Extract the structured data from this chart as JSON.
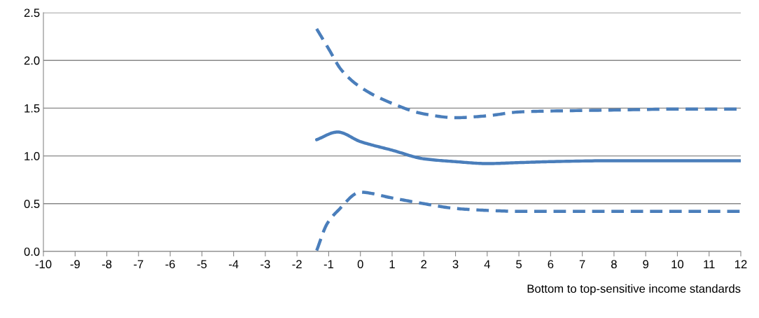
{
  "chart_data": {
    "type": "line",
    "xlabel": "Bottom to top-sensitive income standards",
    "xlim": [
      -10,
      12
    ],
    "xticks": [
      -10,
      -9,
      -8,
      -7,
      -6,
      -5,
      -4,
      -3,
      -2,
      -1,
      0,
      1,
      2,
      3,
      4,
      5,
      6,
      7,
      8,
      9,
      10,
      11,
      12
    ],
    "ylim": [
      0,
      2.5
    ],
    "yticks": [
      {
        "value": 0,
        "label": "0.0"
      },
      {
        "value": 0.5,
        "label": "0.5"
      },
      {
        "value": 1,
        "label": "1.0"
      },
      {
        "value": 1.5,
        "label": "1.5"
      },
      {
        "value": 2,
        "label": "2.0"
      },
      {
        "value": 2.5,
        "label": "2.5"
      }
    ],
    "grid": "y",
    "series": [
      {
        "color": "#4a7ebb",
        "line_style": "dashed",
        "x": [
          -1.38,
          -1.0,
          -0.6,
          0,
          1,
          2,
          3,
          4,
          5,
          6,
          8,
          10,
          12
        ],
        "values": [
          2.33,
          2.12,
          1.9,
          1.72,
          1.55,
          1.44,
          1.4,
          1.42,
          1.46,
          1.47,
          1.48,
          1.49,
          1.49
        ]
      },
      {
        "color": "#4a7ebb",
        "line_style": "solid",
        "x": [
          -1.38,
          -0.72,
          0,
          1,
          2,
          3,
          4,
          5,
          6,
          8,
          10,
          12
        ],
        "values": [
          1.17,
          1.25,
          1.15,
          1.06,
          0.97,
          0.94,
          0.92,
          0.93,
          0.94,
          0.95,
          0.95,
          0.95
        ]
      },
      {
        "color": "#4a7ebb",
        "line_style": "dashed",
        "x": [
          -1.38,
          -1.05,
          -0.7,
          0,
          1,
          2,
          3,
          4,
          5,
          6,
          8,
          10,
          12
        ],
        "values": [
          0.01,
          0.29,
          0.43,
          0.62,
          0.56,
          0.5,
          0.45,
          0.43,
          0.42,
          0.42,
          0.42,
          0.42,
          0.42
        ]
      }
    ]
  }
}
